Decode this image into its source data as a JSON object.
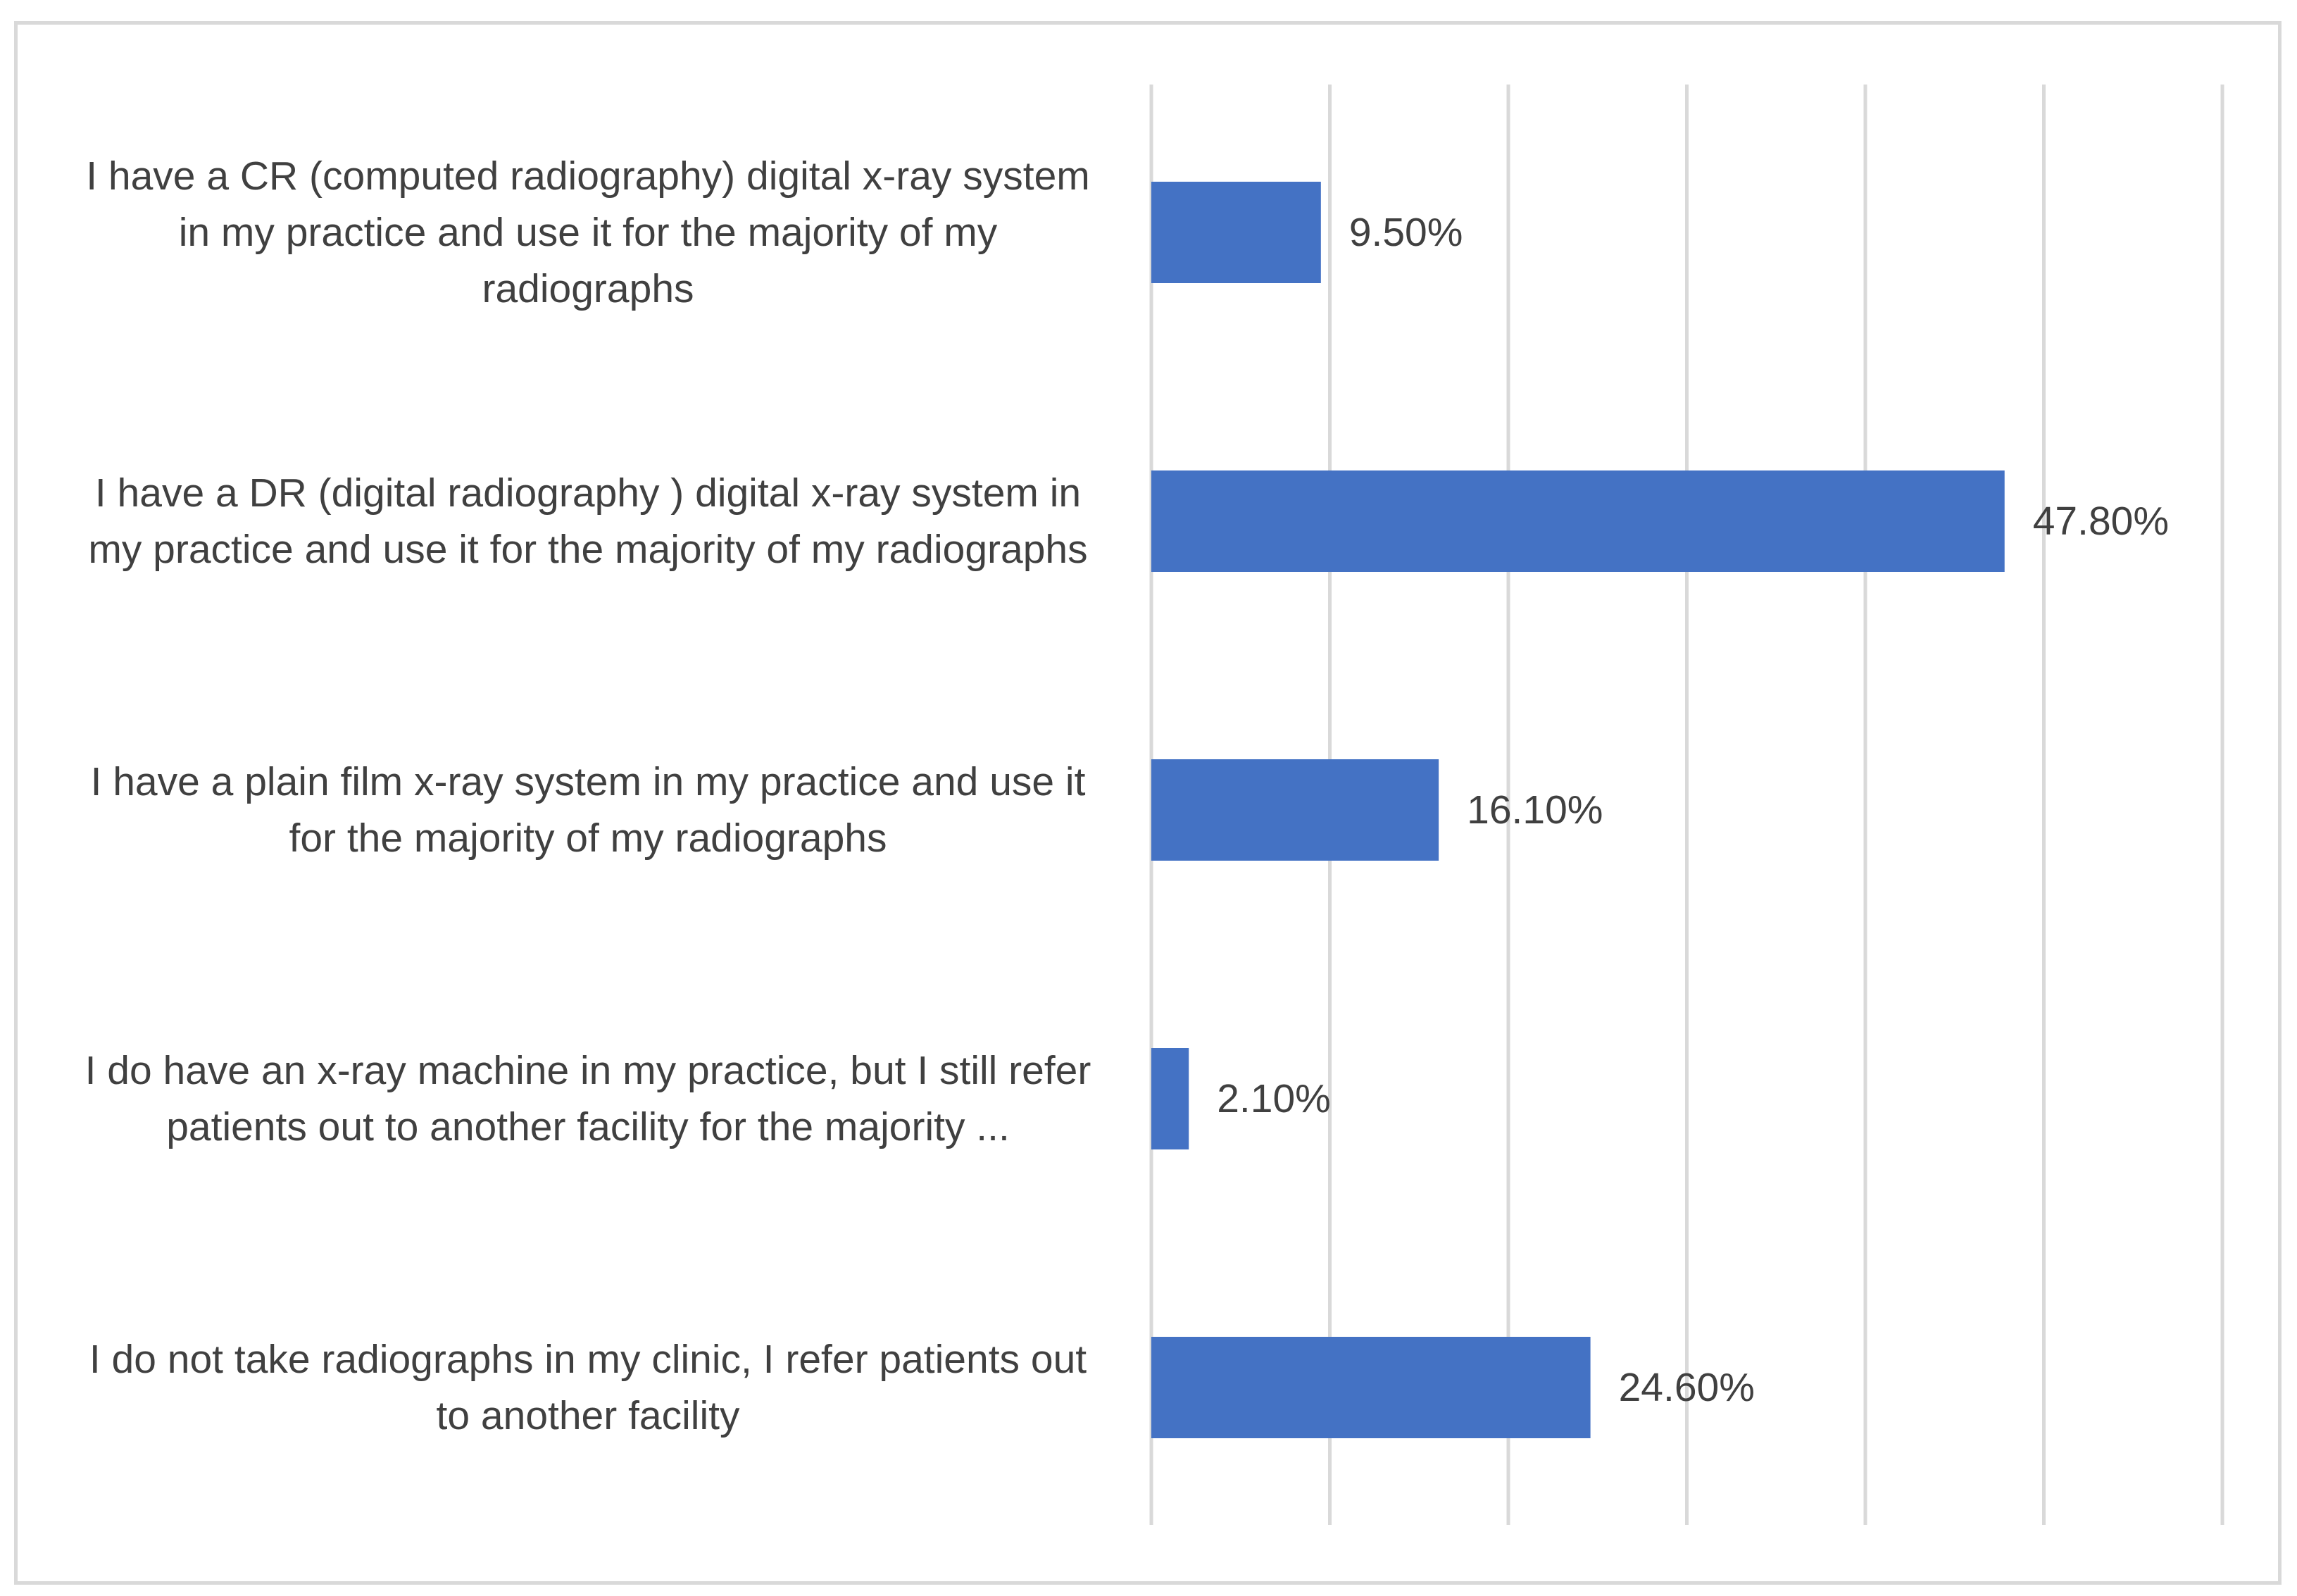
{
  "chart_data": {
    "type": "bar",
    "orientation": "horizontal",
    "title": "",
    "xlabel": "",
    "ylabel": "",
    "xlim": [
      0,
      60
    ],
    "grid": true,
    "legend": "none",
    "bar_color": "#4472c4",
    "categories": [
      [
        "I have a CR (computed radiography) digital x-ray system",
        "in my practice and use it for the majority of my",
        "radiographs"
      ],
      [
        "I have a DR (digital radiography ) digital x-ray system in",
        "my practice and use it for the majority of my radiographs"
      ],
      [
        "I have a plain film x-ray system in my practice and use it",
        "for the majority of my radiographs"
      ],
      [
        "I do have an x-ray machine in my practice, but I still refer",
        "patients out to another facility for the majority ..."
      ],
      [
        "I do not take radiographs in my clinic, I refer patients out",
        "to another facility"
      ]
    ],
    "values": [
      9.5,
      47.8,
      16.1,
      2.1,
      24.6
    ],
    "data_labels": [
      "9.50%",
      "47.80%",
      "16.10%",
      "2.10%",
      "24.60%"
    ]
  }
}
